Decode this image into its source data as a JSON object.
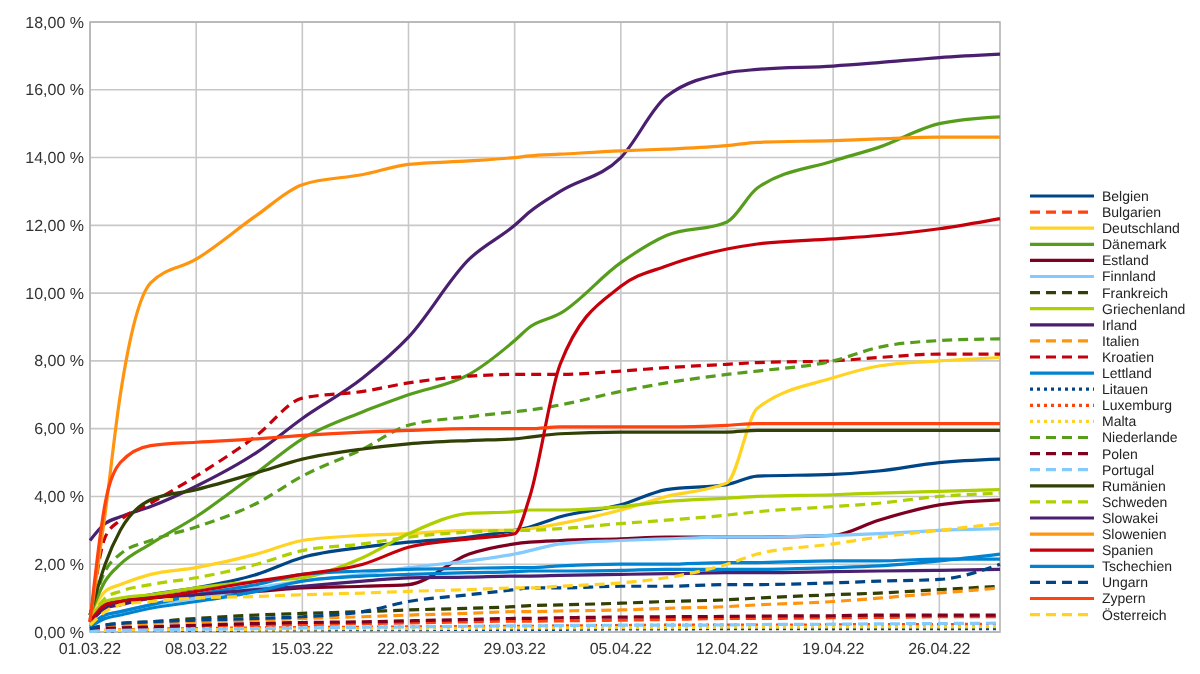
{
  "chart_data": {
    "type": "line",
    "x": [
      "--03-01",
      "--03-02",
      "--03-03",
      "--03-05",
      "--03-08",
      "--03-12",
      "--03-15",
      "--03-19",
      "--03-22",
      "--03-26",
      "--03-29",
      "--03-30",
      "--04-01",
      "--04-05",
      "--04-08",
      "--04-12",
      "--04-14",
      "--04-19",
      "--04-22",
      "--04-26",
      "--04-30"
    ],
    "xlim": [
      "--03-01",
      "--04-30"
    ],
    "xticks": [
      {
        "value": "--03-01",
        "label": "01.03.22"
      },
      {
        "value": "--03-08",
        "label": "08.03.22"
      },
      {
        "value": "--03-15",
        "label": "15.03.22"
      },
      {
        "value": "--03-22",
        "label": "22.03.22"
      },
      {
        "value": "--03-29",
        "label": "29.03.22"
      },
      {
        "value": "--04-05",
        "label": "05.04.22"
      },
      {
        "value": "--04-12",
        "label": "12.04.22"
      },
      {
        "value": "--04-19",
        "label": "19.04.22"
      },
      {
        "value": "--04-26",
        "label": "26.04.22"
      }
    ],
    "ylim": [
      0,
      18
    ],
    "yticks": [
      {
        "value": 0,
        "label": "0,00 %"
      },
      {
        "value": 2,
        "label": "2,00 %"
      },
      {
        "value": 4,
        "label": "4,00 %"
      },
      {
        "value": 6,
        "label": "6,00 %"
      },
      {
        "value": 8,
        "label": "8,00 %"
      },
      {
        "value": 10,
        "label": "10,00 %"
      },
      {
        "value": 12,
        "label": "12,00 %"
      },
      {
        "value": 14,
        "label": "14,00 %"
      },
      {
        "value": 16,
        "label": "16,00 %"
      },
      {
        "value": 18,
        "label": "18,00 %"
      }
    ],
    "grid": true,
    "legend": "right",
    "series": [
      {
        "name": "Belgien",
        "color": "#004586",
        "values": [
          0.3,
          0.7,
          0.9,
          1.1,
          1.3,
          1.7,
          2.2,
          2.5,
          2.65,
          2.8,
          3.0,
          3.1,
          3.4,
          3.75,
          4.2,
          4.35,
          4.6,
          4.65,
          4.75,
          5.0,
          5.1
        ]
      },
      {
        "name": "Bulgarien",
        "color": "#ff420e",
        "line_style": "dashed",
        "values": [
          0.05,
          0.1,
          0.12,
          0.15,
          0.18,
          0.2,
          0.22,
          0.25,
          0.27,
          0.3,
          0.32,
          0.32,
          0.33,
          0.35,
          0.37,
          0.4,
          0.4,
          0.42,
          0.43,
          0.45,
          0.45
        ]
      },
      {
        "name": "Deutschland",
        "color": "#ffd320",
        "values": [
          0.5,
          1.2,
          1.4,
          1.7,
          1.9,
          2.3,
          2.7,
          2.85,
          2.9,
          3.0,
          3.0,
          3.05,
          3.2,
          3.6,
          4.0,
          4.4,
          6.6,
          7.5,
          7.85,
          8.0,
          8.1
        ]
      },
      {
        "name": "Dänemark",
        "color": "#579d1c",
        "values": [
          0.5,
          1.5,
          2.0,
          2.6,
          3.4,
          4.7,
          5.7,
          6.5,
          7.0,
          7.6,
          8.6,
          9.0,
          9.4,
          10.9,
          11.7,
          12.1,
          13.1,
          13.9,
          14.3,
          15.0,
          15.2
        ]
      },
      {
        "name": "Estland",
        "color": "#7e0021",
        "values": [
          0.3,
          0.8,
          0.9,
          1.0,
          1.1,
          1.2,
          1.3,
          1.35,
          1.4,
          2.3,
          2.6,
          2.65,
          2.7,
          2.75,
          2.8,
          2.8,
          2.8,
          2.85,
          3.3,
          3.75,
          3.9
        ]
      },
      {
        "name": "Finnland",
        "color": "#83caff",
        "values": [
          0.2,
          0.5,
          0.6,
          0.8,
          1.0,
          1.3,
          1.5,
          1.7,
          1.9,
          2.1,
          2.3,
          2.4,
          2.6,
          2.7,
          2.75,
          2.8,
          2.8,
          2.85,
          2.9,
          3.0,
          3.05
        ]
      },
      {
        "name": "Frankreich",
        "color": "#314004",
        "line_style": "dashed",
        "values": [
          0.1,
          0.2,
          0.25,
          0.3,
          0.4,
          0.5,
          0.55,
          0.6,
          0.65,
          0.7,
          0.75,
          0.78,
          0.8,
          0.85,
          0.9,
          0.95,
          1.0,
          1.1,
          1.15,
          1.25,
          1.35
        ]
      },
      {
        "name": "Griechenland",
        "color": "#aecf00",
        "values": [
          0.4,
          0.9,
          1.0,
          1.1,
          1.3,
          1.5,
          1.6,
          2.2,
          2.9,
          3.5,
          3.55,
          3.6,
          3.6,
          3.7,
          3.85,
          3.95,
          4.0,
          4.05,
          4.1,
          4.15,
          4.2
        ]
      },
      {
        "name": "Irland",
        "color": "#4b1f6f",
        "values": [
          2.7,
          3.2,
          3.4,
          3.7,
          4.3,
          5.3,
          6.3,
          7.5,
          8.7,
          11.0,
          12.0,
          12.4,
          13.0,
          14.0,
          15.8,
          16.5,
          16.6,
          16.7,
          16.8,
          16.95,
          17.05
        ]
      },
      {
        "name": "Italien",
        "color": "#ff950e",
        "line_style": "dashed",
        "values": [
          0.05,
          0.15,
          0.2,
          0.25,
          0.3,
          0.35,
          0.4,
          0.45,
          0.5,
          0.55,
          0.6,
          0.6,
          0.62,
          0.65,
          0.7,
          0.75,
          0.8,
          0.9,
          1.0,
          1.15,
          1.3
        ]
      },
      {
        "name": "Kroatien",
        "color": "#c5000b",
        "line_style": "dashed",
        "values": [
          0.3,
          2.8,
          3.3,
          3.8,
          4.6,
          5.8,
          6.9,
          7.1,
          7.35,
          7.55,
          7.6,
          7.6,
          7.6,
          7.7,
          7.8,
          7.9,
          7.95,
          8.0,
          8.1,
          8.2,
          8.2
        ]
      },
      {
        "name": "Lettland",
        "color": "#0084d1",
        "values": [
          0.2,
          0.5,
          0.6,
          0.8,
          1.1,
          1.4,
          1.7,
          1.8,
          1.85,
          1.88,
          1.9,
          1.9,
          1.95,
          2.0,
          2.0,
          2.05,
          2.05,
          2.1,
          2.1,
          2.15,
          2.15
        ]
      },
      {
        "name": "Litauen",
        "color": "#004586",
        "line_style": "dotted",
        "values": [
          0.02,
          0.03,
          0.04,
          0.05,
          0.05,
          0.06,
          0.06,
          0.07,
          0.07,
          0.08,
          0.08,
          0.08,
          0.08,
          0.09,
          0.09,
          0.1,
          0.1,
          0.1,
          0.1,
          0.1,
          0.1
        ]
      },
      {
        "name": "Luxemburg",
        "color": "#ff420e",
        "line_style": "dotted",
        "values": [
          0.03,
          0.05,
          0.06,
          0.08,
          0.1,
          0.12,
          0.13,
          0.14,
          0.15,
          0.16,
          0.17,
          0.17,
          0.18,
          0.19,
          0.2,
          0.2,
          0.2,
          0.21,
          0.22,
          0.22,
          0.23
        ]
      },
      {
        "name": "Malta",
        "color": "#ffd320",
        "line_style": "dotted",
        "values": [
          0.02,
          0.04,
          0.05,
          0.06,
          0.07,
          0.08,
          0.09,
          0.1,
          0.1,
          0.11,
          0.12,
          0.12,
          0.12,
          0.13,
          0.13,
          0.14,
          0.14,
          0.15,
          0.15,
          0.15,
          0.16
        ]
      },
      {
        "name": "Niederlande",
        "color": "#579d1c",
        "line_style": "dashed",
        "values": [
          0.5,
          1.8,
          2.3,
          2.7,
          3.1,
          3.8,
          4.6,
          5.4,
          6.1,
          6.35,
          6.5,
          6.55,
          6.7,
          7.1,
          7.35,
          7.6,
          7.7,
          8.0,
          8.4,
          8.6,
          8.65
        ]
      },
      {
        "name": "Polen",
        "color": "#7e0021",
        "line_style": "dashed",
        "values": [
          0.05,
          0.1,
          0.12,
          0.15,
          0.2,
          0.25,
          0.28,
          0.3,
          0.33,
          0.37,
          0.4,
          0.4,
          0.42,
          0.44,
          0.45,
          0.46,
          0.47,
          0.48,
          0.5,
          0.5,
          0.5
        ]
      },
      {
        "name": "Portugal",
        "color": "#83caff",
        "line_style": "dashed",
        "values": [
          0.02,
          0.04,
          0.05,
          0.06,
          0.08,
          0.1,
          0.12,
          0.14,
          0.15,
          0.17,
          0.18,
          0.18,
          0.19,
          0.2,
          0.2,
          0.21,
          0.22,
          0.23,
          0.24,
          0.25,
          0.26
        ]
      },
      {
        "name": "Rumänien",
        "color": "#314004",
        "values": [
          0.5,
          2.0,
          3.0,
          3.9,
          4.2,
          4.7,
          5.1,
          5.4,
          5.55,
          5.65,
          5.7,
          5.75,
          5.85,
          5.9,
          5.9,
          5.9,
          5.95,
          5.95,
          5.95,
          5.95,
          5.95
        ]
      },
      {
        "name": "Schweden",
        "color": "#aecf00",
        "line_style": "dashed",
        "values": [
          0.4,
          1.0,
          1.2,
          1.4,
          1.6,
          2.0,
          2.4,
          2.6,
          2.8,
          2.95,
          3.0,
          3.0,
          3.05,
          3.2,
          3.3,
          3.45,
          3.55,
          3.7,
          3.8,
          4.0,
          4.1
        ]
      },
      {
        "name": "Slowakei",
        "color": "#4b1f6f",
        "values": [
          0.3,
          0.7,
          0.8,
          1.0,
          1.1,
          1.25,
          1.35,
          1.5,
          1.6,
          1.62,
          1.65,
          1.65,
          1.67,
          1.7,
          1.72,
          1.75,
          1.75,
          1.78,
          1.8,
          1.82,
          1.85
        ]
      },
      {
        "name": "Slowenien",
        "color": "#ff950e",
        "values": [
          0.3,
          3.5,
          7.0,
          10.3,
          11.0,
          12.3,
          13.2,
          13.5,
          13.8,
          13.9,
          14.0,
          14.05,
          14.1,
          14.2,
          14.25,
          14.35,
          14.45,
          14.5,
          14.55,
          14.6,
          14.6
        ]
      },
      {
        "name": "Spanien",
        "color": "#c5000b",
        "values": [
          0.3,
          0.8,
          0.9,
          1.0,
          1.2,
          1.5,
          1.7,
          2.0,
          2.5,
          2.75,
          2.9,
          4.0,
          7.9,
          10.2,
          10.8,
          11.3,
          11.45,
          11.6,
          11.7,
          11.9,
          12.2
        ]
      },
      {
        "name": "Tschechien",
        "color": "#0084d1",
        "values": [
          0.15,
          0.4,
          0.5,
          0.7,
          0.9,
          1.2,
          1.5,
          1.65,
          1.7,
          1.75,
          1.78,
          1.8,
          1.8,
          1.82,
          1.85,
          1.85,
          1.85,
          1.9,
          1.95,
          2.1,
          2.3
        ]
      },
      {
        "name": "Ungarn",
        "color": "#004586",
        "line_style": "dashed",
        "values": [
          0.1,
          0.2,
          0.25,
          0.3,
          0.35,
          0.4,
          0.45,
          0.6,
          0.9,
          1.1,
          1.25,
          1.3,
          1.3,
          1.35,
          1.35,
          1.4,
          1.4,
          1.45,
          1.5,
          1.55,
          2.0
        ]
      },
      {
        "name": "Zypern",
        "color": "#ff420e",
        "values": [
          0.3,
          3.8,
          5.0,
          5.5,
          5.6,
          5.7,
          5.8,
          5.9,
          5.95,
          6.0,
          6.0,
          6.0,
          6.05,
          6.05,
          6.05,
          6.1,
          6.15,
          6.15,
          6.15,
          6.15,
          6.15
        ]
      },
      {
        "name": "Österreich",
        "color": "#ffd320",
        "line_style": "dashed",
        "values": [
          0.2,
          0.6,
          0.8,
          0.9,
          1.0,
          1.05,
          1.1,
          1.15,
          1.2,
          1.25,
          1.3,
          1.3,
          1.35,
          1.45,
          1.6,
          2.0,
          2.3,
          2.6,
          2.8,
          3.0,
          3.2
        ]
      }
    ]
  }
}
